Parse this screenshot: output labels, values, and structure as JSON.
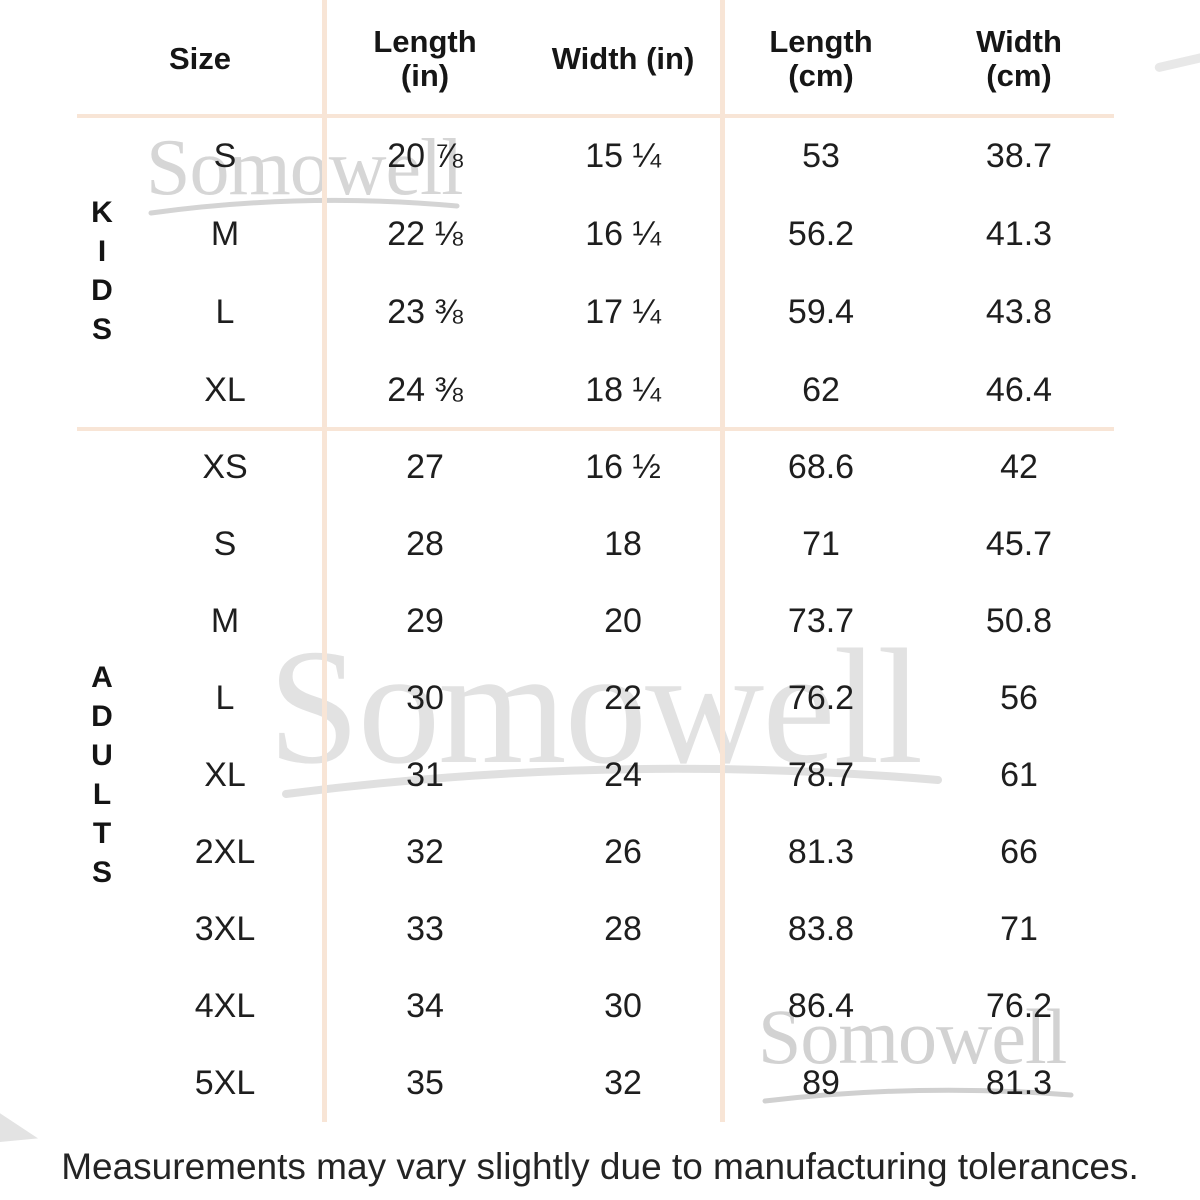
{
  "brand_watermark": {
    "text": "Somowell"
  },
  "chart_data": {
    "type": "table",
    "columns": [
      "Size",
      "Length\n(in)",
      "Width (in)",
      "Length\n(cm)",
      "Width\n(cm)"
    ],
    "groups": [
      {
        "label": "KIDS",
        "rows": [
          {
            "size": "S",
            "length_in": "20 ⅞",
            "width_in": "15 ¼",
            "length_cm": "53",
            "width_cm": "38.7"
          },
          {
            "size": "M",
            "length_in": "22 ⅛",
            "width_in": "16 ¼",
            "length_cm": "56.2",
            "width_cm": "41.3"
          },
          {
            "size": "L",
            "length_in": "23 ⅜",
            "width_in": "17 ¼",
            "length_cm": "59.4",
            "width_cm": "43.8"
          },
          {
            "size": "XL",
            "length_in": "24 ⅜",
            "width_in": "18 ¼",
            "length_cm": "62",
            "width_cm": "46.4"
          }
        ]
      },
      {
        "label": "ADULTS",
        "rows": [
          {
            "size": "XS",
            "length_in": "27",
            "width_in": "16 ½",
            "length_cm": "68.6",
            "width_cm": "42"
          },
          {
            "size": "S",
            "length_in": "28",
            "width_in": "18",
            "length_cm": "71",
            "width_cm": "45.7"
          },
          {
            "size": "M",
            "length_in": "29",
            "width_in": "20",
            "length_cm": "73.7",
            "width_cm": "50.8"
          },
          {
            "size": "L",
            "length_in": "30",
            "width_in": "22",
            "length_cm": "76.2",
            "width_cm": "56"
          },
          {
            "size": "XL",
            "length_in": "31",
            "width_in": "24",
            "length_cm": "78.7",
            "width_cm": "61"
          },
          {
            "size": "2XL",
            "length_in": "32",
            "width_in": "26",
            "length_cm": "81.3",
            "width_cm": "66"
          },
          {
            "size": "3XL",
            "length_in": "33",
            "width_in": "28",
            "length_cm": "83.8",
            "width_cm": "71"
          },
          {
            "size": "4XL",
            "length_in": "34",
            "width_in": "30",
            "length_cm": "86.4",
            "width_cm": "76.2"
          },
          {
            "size": "5XL",
            "length_in": "35",
            "width_in": "32",
            "length_cm": "89",
            "width_cm": "81.3"
          }
        ]
      }
    ]
  },
  "footer_note": "Measurements may vary slightly due to manufacturing tolerances.",
  "colors": {
    "grid_line": "#f8e5d6",
    "text": "#1e1e1e",
    "watermark": "#d9d9d9",
    "background": "#ffffff"
  }
}
